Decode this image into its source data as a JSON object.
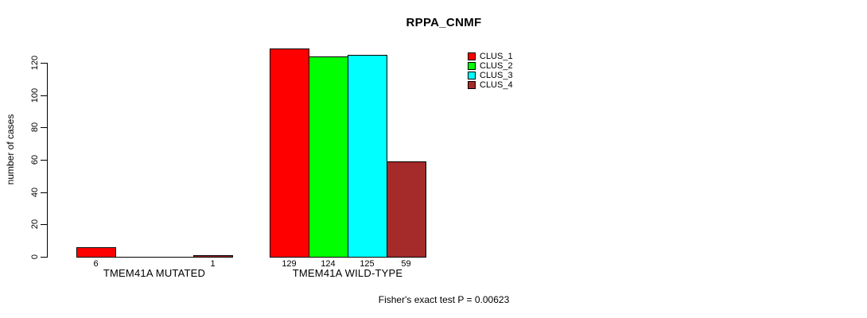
{
  "figure": {
    "background": "#ffffff"
  },
  "chart_data": {
    "type": "bar",
    "title": "RPPA_CNMF",
    "xlabel": "",
    "ylabel": "number of cases",
    "ylim": [
      0,
      130
    ],
    "yticks": [
      0,
      20,
      40,
      60,
      80,
      100,
      120
    ],
    "grid": false,
    "legend_position": "inside-top-right",
    "categories": [
      "TMEM41A MUTATED",
      "TMEM41A WILD-TYPE"
    ],
    "series": [
      {
        "name": "CLUS_1",
        "color": "#ff0000",
        "values": [
          6,
          129
        ]
      },
      {
        "name": "CLUS_2",
        "color": "#00ff00",
        "values": [
          0,
          124
        ]
      },
      {
        "name": "CLUS_3",
        "color": "#00ffff",
        "values": [
          0,
          125
        ]
      },
      {
        "name": "CLUS_4",
        "color": "#a52a2a",
        "values": [
          1,
          59
        ]
      }
    ],
    "bar_value_labels": [
      {
        "category": "TMEM41A MUTATED",
        "labels": [
          "6",
          "",
          "",
          "1"
        ]
      },
      {
        "category": "TMEM41A WILD-TYPE",
        "labels": [
          "129",
          "124",
          "125",
          "59"
        ]
      }
    ],
    "annotation": "Fisher's exact test P = 0.00623"
  }
}
